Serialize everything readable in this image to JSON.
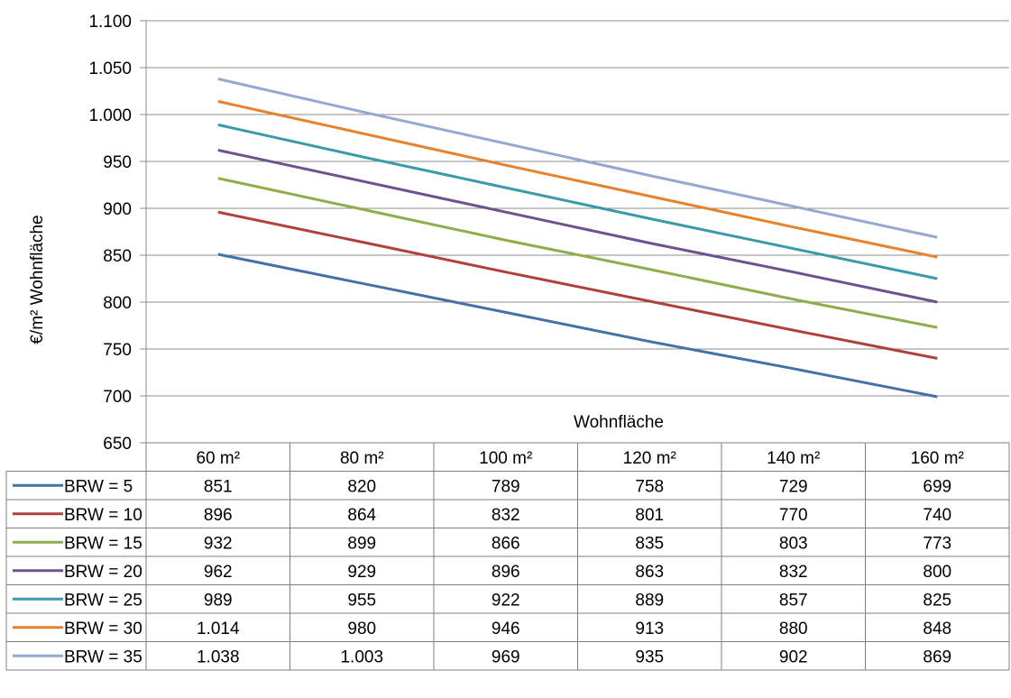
{
  "chart_data": {
    "type": "line",
    "title": "",
    "xlabel": "Wohnfläche",
    "ylabel": "€/m² Wohnfläche",
    "categories": [
      "60 m²",
      "80 m²",
      "100 m²",
      "120 m²",
      "140 m²",
      "160 m²"
    ],
    "ylim": [
      650,
      1100
    ],
    "yticks": [
      650,
      700,
      750,
      800,
      850,
      900,
      950,
      1000,
      1050,
      1100
    ],
    "ytick_labels": [
      "650",
      "700",
      "750",
      "800",
      "850",
      "900",
      "950",
      "1.000",
      "1.050",
      "1.100"
    ],
    "grid": true,
    "legend": "data-table-below",
    "series": [
      {
        "name": "BRW = 5",
        "color": "#4472a8",
        "values": [
          851,
          820,
          789,
          758,
          729,
          699
        ],
        "labels": [
          "851",
          "820",
          "789",
          "758",
          "729",
          "699"
        ]
      },
      {
        "name": "BRW = 10",
        "color": "#b0403c",
        "values": [
          896,
          864,
          832,
          801,
          770,
          740
        ],
        "labels": [
          "896",
          "864",
          "832",
          "801",
          "770",
          "740"
        ]
      },
      {
        "name": "BRW = 15",
        "color": "#8fae4a",
        "values": [
          932,
          899,
          866,
          835,
          803,
          773
        ],
        "labels": [
          "932",
          "899",
          "866",
          "835",
          "803",
          "773"
        ]
      },
      {
        "name": "BRW = 20",
        "color": "#6e528f",
        "values": [
          962,
          929,
          896,
          863,
          832,
          800
        ],
        "labels": [
          "962",
          "929",
          "896",
          "863",
          "832",
          "800"
        ]
      },
      {
        "name": "BRW = 25",
        "color": "#3a9aaa",
        "values": [
          989,
          955,
          922,
          889,
          857,
          825
        ],
        "labels": [
          "989",
          "955",
          "922",
          "889",
          "857",
          "825"
        ]
      },
      {
        "name": "BRW = 30",
        "color": "#e6822e",
        "values": [
          1014,
          980,
          946,
          913,
          880,
          848
        ],
        "labels": [
          "1.014",
          "980",
          "946",
          "913",
          "880",
          "848"
        ]
      },
      {
        "name": "BRW = 35",
        "color": "#93a9d2",
        "values": [
          1038,
          1003,
          969,
          935,
          902,
          869
        ],
        "labels": [
          "1.038",
          "1.003",
          "969",
          "935",
          "902",
          "869"
        ]
      }
    ]
  }
}
